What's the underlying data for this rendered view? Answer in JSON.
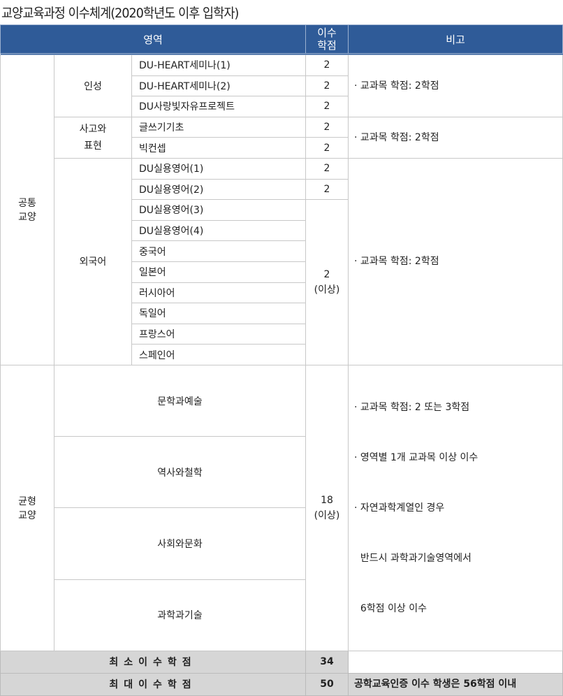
{
  "title": "교양교육과정 이수체계(2020학년도 이후 입학자)",
  "header": {
    "area": "영역",
    "credits": "이수\n학점",
    "note": "비고"
  },
  "common": {
    "label": "공통\n교양",
    "groups": [
      {
        "label": "인성",
        "items": [
          {
            "name": "DU-HEART세미나(1)",
            "credit": "2"
          },
          {
            "name": "DU-HEART세미나(2)",
            "credit": "2"
          },
          {
            "name": "DU사랑빛자유프로젝트",
            "credit": "2"
          }
        ],
        "note": "· 교과목 학점: 2학점"
      },
      {
        "label": "사고와\n표현",
        "items": [
          {
            "name": "글쓰기기초",
            "credit": "2"
          },
          {
            "name": "빅컨셉",
            "credit": "2"
          }
        ],
        "note": "· 교과목 학점: 2학점"
      },
      {
        "label": "외국어",
        "items": [
          {
            "name": "DU실용영어(1)",
            "credit": "2"
          },
          {
            "name": "DU실용영어(2)",
            "credit": "2"
          },
          {
            "name": "DU실용영어(3)"
          },
          {
            "name": "DU실용영어(4)"
          },
          {
            "name": "중국어"
          },
          {
            "name": "일본어"
          },
          {
            "name": "러시아어"
          },
          {
            "name": "독일어"
          },
          {
            "name": "프랑스어"
          },
          {
            "name": "스페인어"
          }
        ],
        "shared_credit": "2\n(이상)",
        "note": "· 교과목 학점: 2학점"
      }
    ]
  },
  "balanced": {
    "label": "균형\n교양",
    "items": [
      "문학과예술",
      "역사와철학",
      "사회와문화",
      "과학과기술"
    ],
    "credit": "18\n(이상)",
    "notes": [
      "· 교과목 학점: 2 또는 3학점",
      "· 영역별 1개 교과목 이상 이수",
      "· 자연과학계열인 경우",
      "  반드시 과학과기술영역에서",
      "  6학점 이상 이수"
    ]
  },
  "summary": [
    {
      "label": "최소이수학점",
      "value": "34",
      "note": ""
    },
    {
      "label": "최대이수학점",
      "value": "50",
      "note": "공학교육인증 이수 학생은 56학점 이내"
    }
  ]
}
